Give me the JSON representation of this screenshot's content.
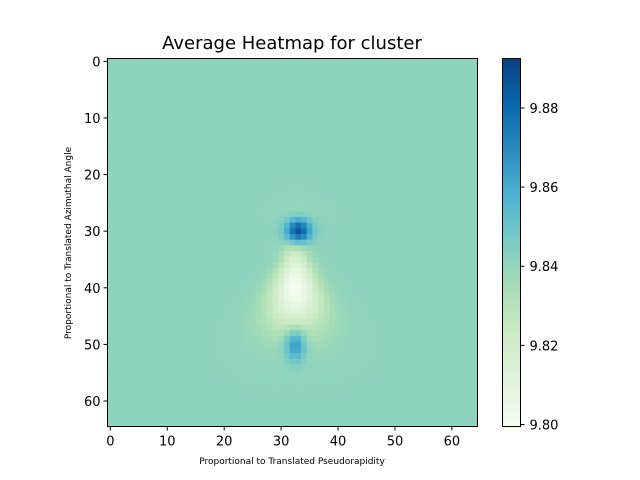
{
  "chart_data": {
    "type": "heatmap",
    "title": "Average Heatmap for cluster",
    "xlabel": "Proportional to Translated Pseudorapidity",
    "ylabel": "Proportional to Translated Azimuthal Angle",
    "grid_size": [
      65,
      65
    ],
    "xlim": [
      -0.5,
      64.5
    ],
    "ylim": [
      64.5,
      -0.5
    ],
    "x_ticks": [
      0,
      10,
      20,
      30,
      40,
      50,
      60
    ],
    "y_ticks": [
      0,
      10,
      20,
      30,
      40,
      50,
      60
    ],
    "colormap": "GnBu",
    "colorbar": {
      "range": [
        9.7995,
        9.8925
      ],
      "ticks": [
        9.8,
        9.82,
        9.84,
        9.86,
        9.88
      ],
      "tick_labels": [
        "9.80",
        "9.82",
        "9.84",
        "9.86",
        "9.88"
      ]
    },
    "background_value": 9.841,
    "features": [
      {
        "kind": "peak",
        "col": 33,
        "row": 30,
        "value": 9.892
      },
      {
        "kind": "depression",
        "col": 32.5,
        "row": 40,
        "value": 9.8
      },
      {
        "kind": "secondary_bump",
        "col": 32.5,
        "row": 50,
        "value": 9.85
      }
    ]
  }
}
